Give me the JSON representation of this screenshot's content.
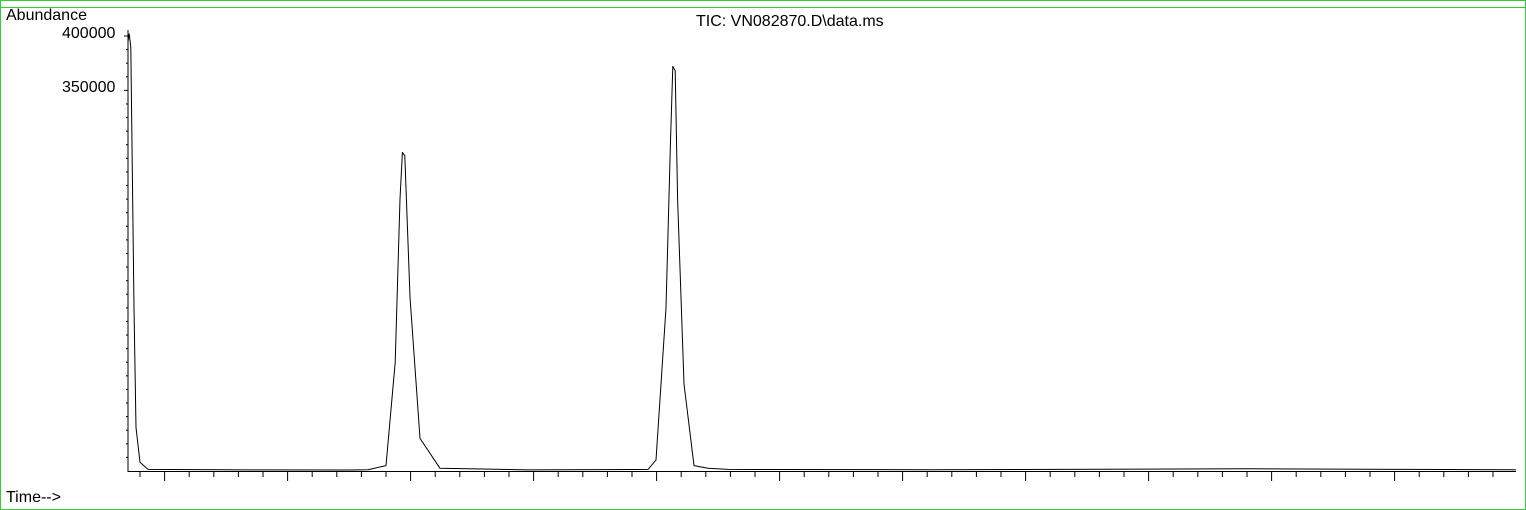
{
  "chart_data": {
    "type": "line",
    "title": "TIC: VN082870.D\\data.ms",
    "ylabel": "Abundance",
    "xlabel": "Time-->",
    "ylim": [
      0,
      400000
    ],
    "y_tick_labels": [
      "400000",
      "350000"
    ],
    "y_tick_values": [
      400000,
      350000
    ],
    "grid": false,
    "line_color": "#000000",
    "frame_color": "#33cc33",
    "series": [
      {
        "x": [
          0.0,
          0.3,
          0.7,
          1.0,
          1.5,
          2.0,
          3.0,
          5.0,
          30.0,
          55.0,
          60.0,
          64.5,
          66.8,
          68.0,
          68.6,
          69.2,
          70.5,
          73.0,
          78.0,
          100.0,
          130.0,
          132.0,
          134.5,
          135.6,
          136.2,
          136.8,
          137.4,
          139.0,
          141.5,
          145.0,
          150.0,
          200.0,
          280.0,
          320.0,
          346.0,
          347.0
        ],
        "y": [
          395000,
          402000,
          390000,
          300000,
          150000,
          40000,
          8000,
          1500,
          1000,
          900,
          1200,
          5000,
          100000,
          250000,
          293000,
          290000,
          160000,
          30000,
          2500,
          1000,
          1500,
          10000,
          150000,
          300000,
          372000,
          368000,
          250000,
          80000,
          5000,
          2500,
          1500,
          1200,
          2000,
          1500,
          1200,
          1000
        ]
      }
    ]
  }
}
